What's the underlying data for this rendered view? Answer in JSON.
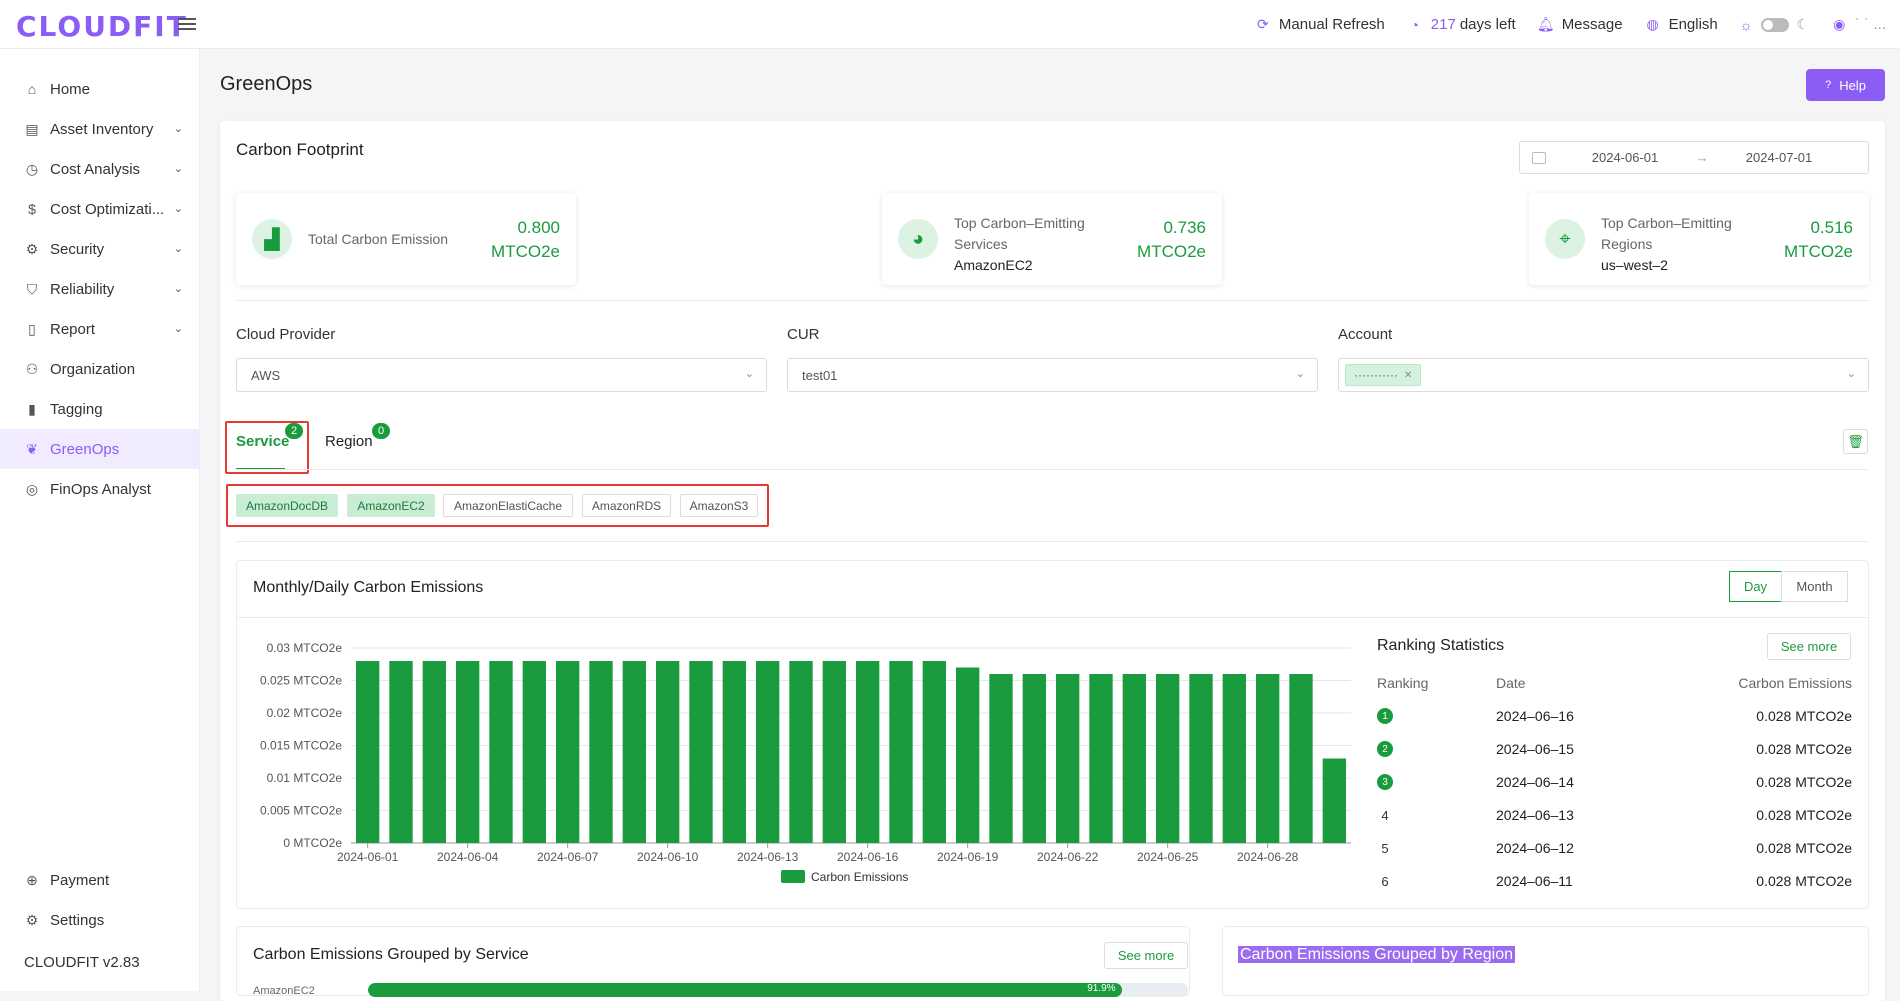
{
  "app": {
    "logo": "CLOUDFIT",
    "version": "CLOUDFIT v2.83"
  },
  "topbar": {
    "refresh_label": "Manual Refresh",
    "days_count": "217",
    "days_suffix": "days left",
    "message_label": "Message",
    "language_label": "English",
    "user_label": "˙ ˙   ..."
  },
  "sidebar": {
    "items": [
      {
        "label": "Home",
        "icon": "home-icon"
      },
      {
        "label": "Asset Inventory",
        "icon": "inventory-icon"
      },
      {
        "label": "Cost Analysis",
        "icon": "chart-icon"
      },
      {
        "label": "Cost Optimizati...",
        "icon": "dollar-icon"
      },
      {
        "label": "Security",
        "icon": "gear-icon"
      },
      {
        "label": "Reliability",
        "icon": "shield-icon"
      },
      {
        "label": "Report",
        "icon": "document-icon"
      },
      {
        "label": "Organization",
        "icon": "tree-icon"
      },
      {
        "label": "Tagging",
        "icon": "tag-icon"
      },
      {
        "label": "GreenOps",
        "icon": "leaf-icon"
      },
      {
        "label": "FinOps Analyst",
        "icon": "analyst-icon"
      }
    ],
    "bottom": [
      {
        "label": "Payment",
        "icon": "payment-icon"
      },
      {
        "label": "Settings",
        "icon": "settings-icon"
      }
    ]
  },
  "page": {
    "title": "GreenOps",
    "help_label": "Help"
  },
  "carbon": {
    "title": "Carbon Footprint",
    "date_start": "2024-06-01",
    "date_arrow": "→",
    "date_end": "2024-07-01",
    "stats": [
      {
        "label": "Total Carbon Emission",
        "sub": "",
        "value": "0.800",
        "unit": "MTCO2e"
      },
      {
        "label": "Top Carbon–Emitting Services",
        "sub": "AmazonEC2",
        "value": "0.736",
        "unit": "MTCO2e"
      },
      {
        "label": "Top Carbon–Emitting Regions",
        "sub": "us–west–2",
        "value": "0.516",
        "unit": "MTCO2e"
      }
    ]
  },
  "filters": {
    "cloud_provider": {
      "label": "Cloud Provider",
      "value": "AWS"
    },
    "cur": {
      "label": "CUR",
      "value": "test01"
    },
    "account": {
      "label": "Account",
      "tag": "···········"
    }
  },
  "tabs": [
    {
      "label": "Service",
      "count": "2"
    },
    {
      "label": "Region",
      "count": "0"
    }
  ],
  "services": [
    "AmazonDocDB",
    "AmazonEC2",
    "AmazonElastiCache",
    "AmazonRDS",
    "AmazonS3"
  ],
  "emissions_panel": {
    "title": "Monthly/Daily Carbon Emissions",
    "day_label": "Day",
    "month_label": "Month"
  },
  "chart_data": {
    "type": "bar",
    "title": "",
    "xlabel": "",
    "ylabel": "",
    "ylim": [
      0,
      0.03
    ],
    "yticks": [
      "0.03 MTCO2e",
      "0.025 MTCO2e",
      "0.02 MTCO2e",
      "0.015 MTCO2e",
      "0.01 MTCO2e",
      "0.005 MTCO2e",
      "0 MTCO2e"
    ],
    "ytick_values": [
      0.03,
      0.025,
      0.02,
      0.015,
      0.01,
      0.005,
      0
    ],
    "xtick_labels": [
      "2024-06-01",
      "2024-06-04",
      "2024-06-07",
      "2024-06-10",
      "2024-06-13",
      "2024-06-16",
      "2024-06-19",
      "2024-06-22",
      "2024-06-25",
      "2024-06-28"
    ],
    "categories": [
      "2024-06-01",
      "2024-06-02",
      "2024-06-03",
      "2024-06-04",
      "2024-06-05",
      "2024-06-06",
      "2024-06-07",
      "2024-06-08",
      "2024-06-09",
      "2024-06-10",
      "2024-06-11",
      "2024-06-12",
      "2024-06-13",
      "2024-06-14",
      "2024-06-15",
      "2024-06-16",
      "2024-06-17",
      "2024-06-18",
      "2024-06-19",
      "2024-06-20",
      "2024-06-21",
      "2024-06-22",
      "2024-06-23",
      "2024-06-24",
      "2024-06-25",
      "2024-06-26",
      "2024-06-27",
      "2024-06-28",
      "2024-06-29",
      "2024-06-30"
    ],
    "series": [
      {
        "name": "Carbon Emissions",
        "values": [
          0.028,
          0.028,
          0.028,
          0.028,
          0.028,
          0.028,
          0.028,
          0.028,
          0.028,
          0.028,
          0.028,
          0.028,
          0.028,
          0.028,
          0.028,
          0.028,
          0.028,
          0.028,
          0.027,
          0.026,
          0.026,
          0.026,
          0.026,
          0.026,
          0.026,
          0.026,
          0.026,
          0.026,
          0.026,
          0.013
        ]
      }
    ],
    "legend": "bottom",
    "color": "#1a9b3e"
  },
  "ranking": {
    "title": "Ranking Statistics",
    "see_more": "See more",
    "headers": {
      "rank": "Ranking",
      "date": "Date",
      "value": "Carbon Emissions"
    },
    "rows": [
      {
        "rank": "1",
        "date": "2024–06–16",
        "value": "0.028 MTCO2e"
      },
      {
        "rank": "2",
        "date": "2024–06–15",
        "value": "0.028 MTCO2e"
      },
      {
        "rank": "3",
        "date": "2024–06–14",
        "value": "0.028 MTCO2e"
      },
      {
        "rank": "4",
        "date": "2024–06–13",
        "value": "0.028 MTCO2e"
      },
      {
        "rank": "5",
        "date": "2024–06–12",
        "value": "0.028 MTCO2e"
      },
      {
        "rank": "6",
        "date": "2024–06–11",
        "value": "0.028 MTCO2e"
      }
    ]
  },
  "grouped_service": {
    "title": "Carbon Emissions Grouped by Service",
    "see_more": "See more",
    "first_label": "AmazonEC2",
    "first_pct": "91.9%",
    "first_fraction": 0.919
  },
  "grouped_region": {
    "title": "Carbon Emissions Grouped by Region"
  }
}
